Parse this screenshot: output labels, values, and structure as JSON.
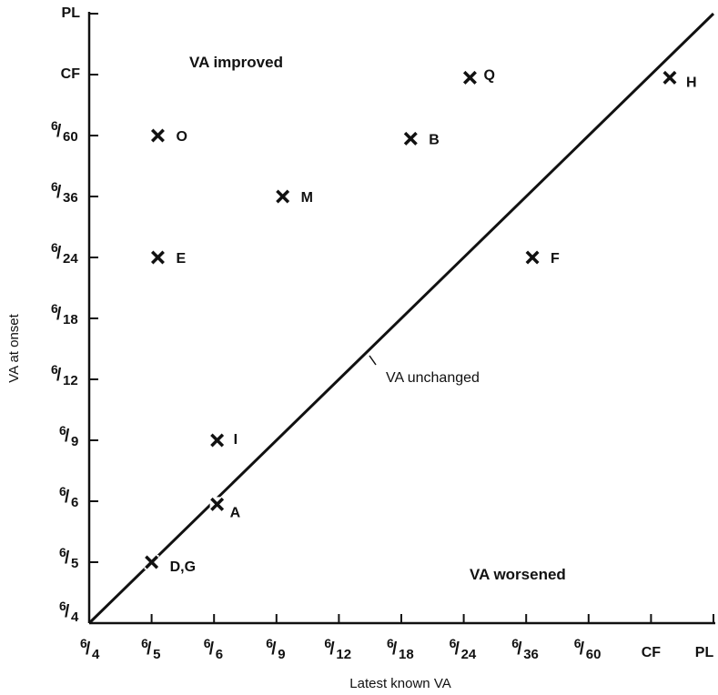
{
  "chart_data": {
    "type": "scatter",
    "xlabel": "Latest known VA",
    "ylabel": "VA at onset",
    "categories": [
      "6/4",
      "6/5",
      "6/6",
      "6/9",
      "6/12",
      "6/18",
      "6/24",
      "6/36",
      "6/60",
      "CF",
      "PL"
    ],
    "x_ticks": [
      "6/4",
      "6/5",
      "6/6",
      "6/9",
      "6/12",
      "6/18",
      "6/24",
      "6/36",
      "6/60",
      "CF",
      "PL"
    ],
    "y_ticks": [
      "6/4",
      "6/5",
      "6/6",
      "6/9",
      "6/12",
      "6/18",
      "6/24",
      "6/36",
      "6/60",
      "CF",
      "PL"
    ],
    "points": [
      {
        "label": "O",
        "x": "6/5",
        "y": "6/60"
      },
      {
        "label": "E",
        "x": "6/5",
        "y": "6/24"
      },
      {
        "label": "I",
        "x": "6/6",
        "y": "6/9"
      },
      {
        "label": "A",
        "x": "6/6",
        "y": "6/6"
      },
      {
        "label": "D,G",
        "x": "6/5",
        "y": "6/5"
      },
      {
        "label": "M",
        "x": "6/9",
        "y": "6/36"
      },
      {
        "label": "B",
        "x": "6/18",
        "y": "6/60"
      },
      {
        "label": "Q",
        "x": "6/24",
        "y": "CF"
      },
      {
        "label": "F",
        "x": "6/36",
        "y": "6/24"
      },
      {
        "label": "H",
        "x": "CF",
        "y": "CF"
      }
    ],
    "point_offsets": {
      "O": [
        0.1,
        0.0
      ],
      "E": [
        0.1,
        0.0
      ],
      "I": [
        0.05,
        0.0
      ],
      "A": [
        0.05,
        -0.05
      ],
      "D,G": [
        0.0,
        0.0
      ],
      "M": [
        0.1,
        0.0
      ],
      "B": [
        0.15,
        -0.05
      ],
      "Q": [
        0.1,
        -0.05
      ],
      "F": [
        0.1,
        0.0
      ],
      "H": [
        0.3,
        -0.05
      ]
    },
    "reference_line": {
      "from": "6/4",
      "to": "PL",
      "label": "VA unchanged"
    },
    "annotations": {
      "improved": "VA improved",
      "worsened": "VA worsened",
      "unchanged": "VA unchanged"
    },
    "grid": false
  }
}
